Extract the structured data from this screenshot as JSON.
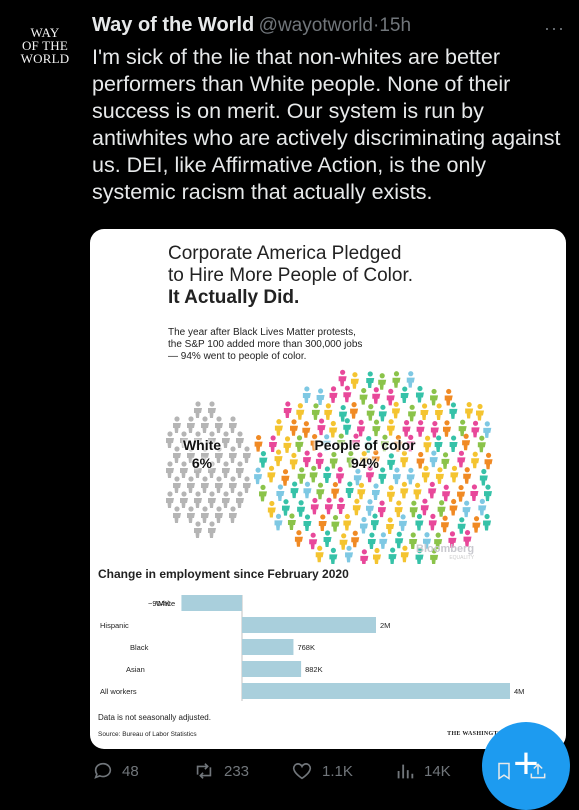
{
  "author": {
    "avatar_lines": [
      "WAY",
      "OF THE",
      "WORLD"
    ],
    "name": "Way of the World",
    "handle": "@wayotworld",
    "separator": "·",
    "time": "15h"
  },
  "more_label": "···",
  "tweet_text": "I'm sick of the lie that non-whites are better performers than White people. None of their success is on merit. Our system is run by antiwhites who are actively discriminating against us. DEI, like Affirmative Action, is the only systemic racism that actually exists.",
  "card": {
    "title_line1": "Corporate America Pledged",
    "title_line2": "to Hire More People of Color.",
    "title_bold": "It Actually Did.",
    "subtitle_line1": "The year after Black Lives Matter protests,",
    "subtitle_line2": "the S&P 100 added more than 300,000 jobs",
    "subtitle_line3": "— 94% went to people of color.",
    "crowd": {
      "white_label": "White",
      "white_pct": "6%",
      "poc_label": "People of color",
      "poc_pct": "94%",
      "colors": [
        "#f4c430",
        "#36c2a8",
        "#e8489a",
        "#7ec8e3",
        "#f08a24",
        "#8bc34a"
      ],
      "white_color": "#b5b5b5"
    },
    "bloomberg": "Bloomberg",
    "bloomberg_sub": "EQUALITY",
    "bar_chart_title": "Change in employment since February 2020",
    "note": "Data is not seasonally adjusted.",
    "source": "Source: Bureau of Labor Statistics",
    "publisher": "THE WASHINGTON POST"
  },
  "chart_data": {
    "type": "bar",
    "orientation": "horizontal",
    "title": "Change in employment since February 2020",
    "categories": [
      "White",
      "Hispanic",
      "Black",
      "Asian",
      "All workers"
    ],
    "values": [
      -904000,
      2000000,
      768000,
      882000,
      4000000
    ],
    "value_labels": [
      "−904K",
      "2M",
      "768K",
      "882K",
      "4M"
    ],
    "bar_color": "#a9cfdc"
  },
  "actions": {
    "replies": "48",
    "reposts": "233",
    "likes": "1.1K",
    "views": "14K"
  },
  "fab_label": "+"
}
